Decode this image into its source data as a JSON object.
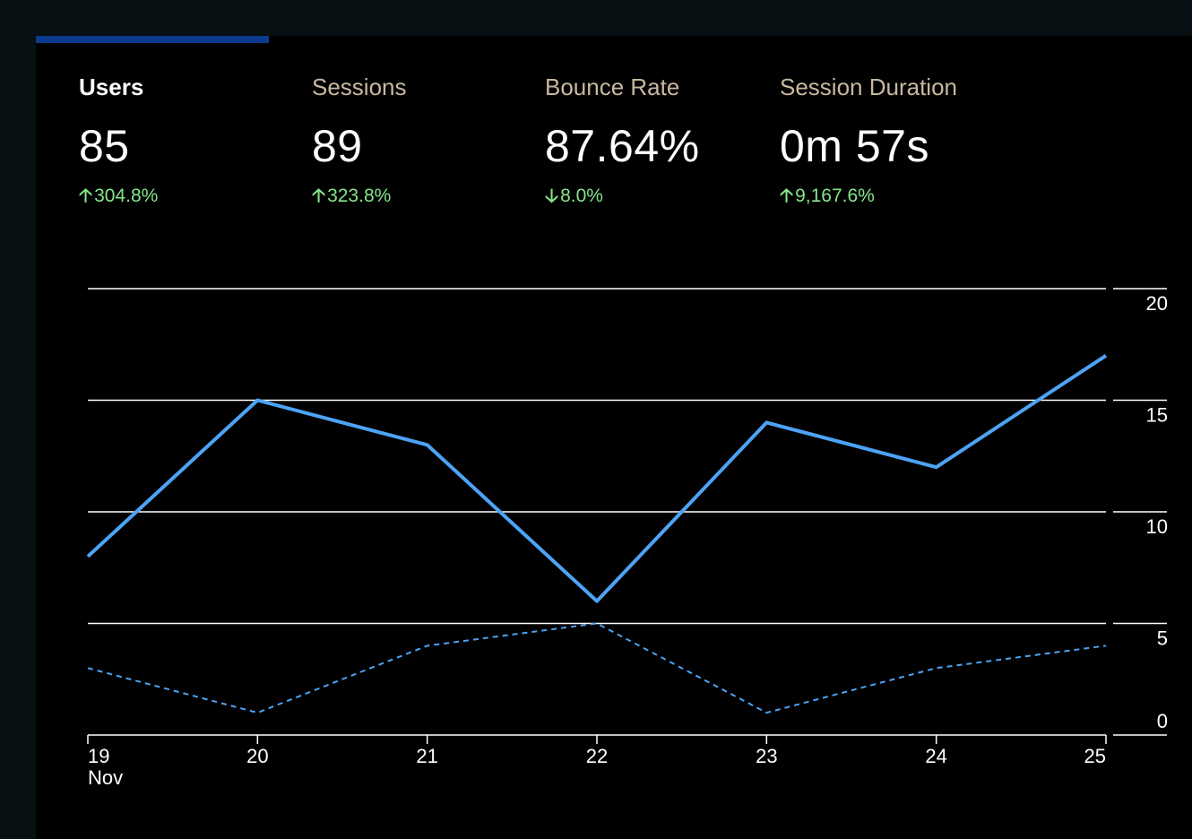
{
  "tab": {
    "label": ""
  },
  "metrics": [
    {
      "label": "Users",
      "value": "85",
      "change": "304.8%",
      "direction": "up",
      "active": true
    },
    {
      "label": "Sessions",
      "value": "89",
      "change": "323.8%",
      "direction": "up",
      "active": false
    },
    {
      "label": "Bounce Rate",
      "value": "87.64%",
      "change": "8.0%",
      "direction": "down",
      "active": false
    },
    {
      "label": "Session Duration",
      "value": "0m 57s",
      "change": "9,167.6%",
      "direction": "up",
      "active": false
    }
  ],
  "colors": {
    "accent": "#0d3b8f",
    "series": "#4da3f5",
    "positive": "#86e58b",
    "label": "#c8b89f"
  },
  "icons": {
    "up": "arrow-up-icon",
    "down": "arrow-down-icon"
  },
  "chart_data": {
    "type": "line",
    "x": [
      "19",
      "20",
      "21",
      "22",
      "23",
      "24",
      "25"
    ],
    "x_sublabel": "Nov",
    "series": [
      {
        "values": [
          8,
          15,
          13,
          6,
          14,
          12,
          17
        ],
        "style": "solid"
      },
      {
        "values": [
          3,
          1,
          4,
          5,
          1,
          3,
          4
        ],
        "style": "dashed"
      }
    ],
    "ylim": [
      0,
      20
    ],
    "yticks": [
      0,
      5,
      10,
      15,
      20
    ],
    "y_axis_position": "right",
    "grid": true
  }
}
